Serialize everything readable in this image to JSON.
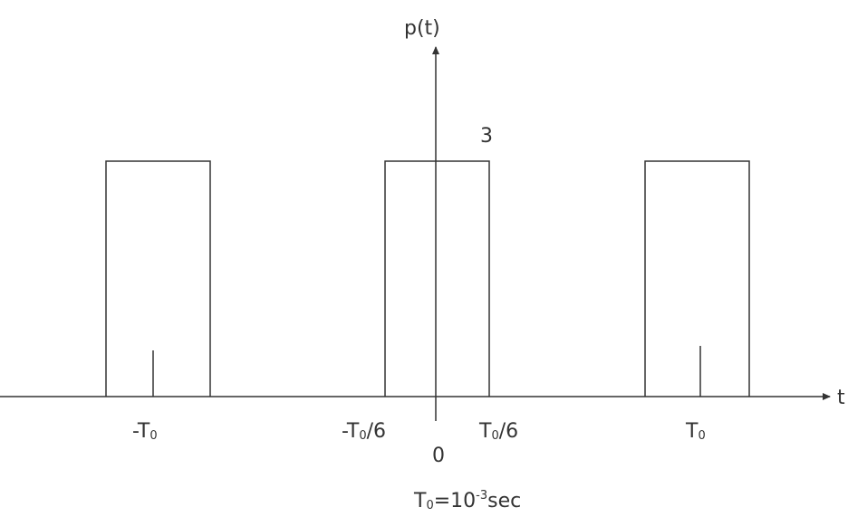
{
  "diagram": {
    "axes": {
      "y_label": "p(t)",
      "x_label": "t"
    },
    "amplitude_label": "3",
    "tick_labels": {
      "neg_T0": {
        "prefix": "-T",
        "sub": "0",
        "suffix": ""
      },
      "neg_T0_6": {
        "prefix": "-T",
        "sub": "0",
        "suffix": "/6"
      },
      "T0_6": {
        "prefix": "T",
        "sub": "0",
        "suffix": "/6"
      },
      "T0": {
        "prefix": "T",
        "sub": "0",
        "suffix": ""
      },
      "origin": "0"
    },
    "caption": {
      "prefix": "T",
      "sub": "0",
      "mid": "=10",
      "sup": "-3",
      "suffix": "sec"
    },
    "pulses": [
      {
        "name": "pulse-left",
        "center": "-T0"
      },
      {
        "name": "pulse-center",
        "center": "0"
      },
      {
        "name": "pulse-right",
        "center": "T0"
      }
    ],
    "colors": {
      "line": "#333333"
    }
  }
}
